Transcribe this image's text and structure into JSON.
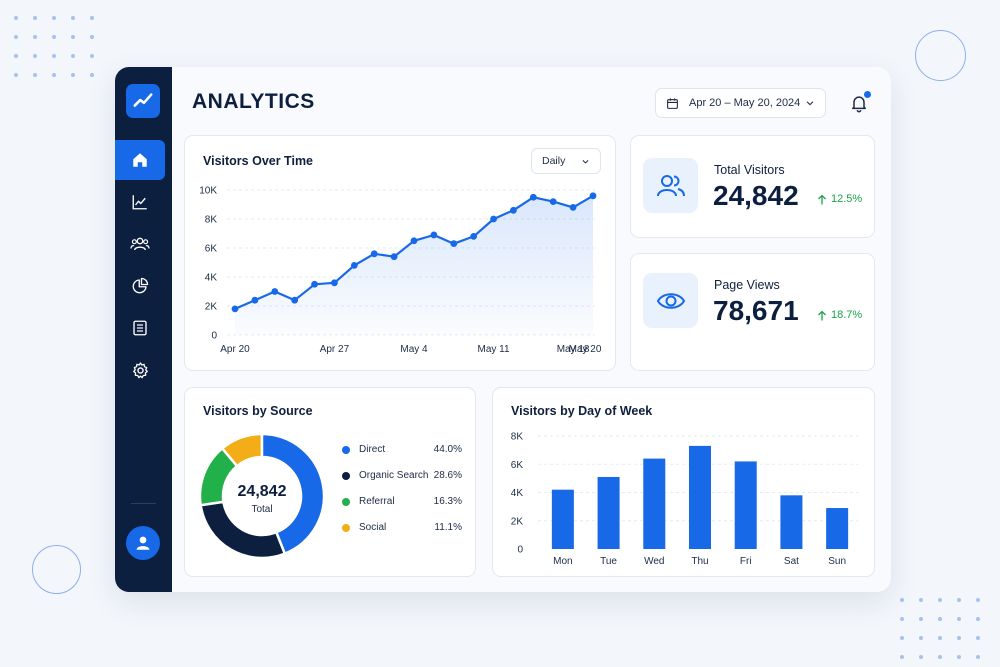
{
  "app": {
    "title": "ANALYTICS"
  },
  "header": {
    "date_range": "Apr 20 – May 20, 2024"
  },
  "sidebar": {
    "items": [
      {
        "name": "home",
        "icon": "home-icon",
        "active": true
      },
      {
        "name": "trends",
        "icon": "chart-line-icon",
        "active": false
      },
      {
        "name": "audience",
        "icon": "users-icon",
        "active": false
      },
      {
        "name": "reports",
        "icon": "pie-chart-icon",
        "active": false
      },
      {
        "name": "lists",
        "icon": "list-icon",
        "active": false
      },
      {
        "name": "settings",
        "icon": "gear-icon",
        "active": false
      }
    ]
  },
  "visitors_over_time": {
    "title": "Visitors Over Time",
    "granularity": "Daily"
  },
  "stats": {
    "total_visitors": {
      "label": "Total Visitors",
      "value": "24,842",
      "change": "12.5%"
    },
    "page_views": {
      "label": "Page Views",
      "value": "78,671",
      "change": "18.7%"
    }
  },
  "visitors_by_source": {
    "title": "Visitors by Source",
    "center_value": "24,842",
    "center_label": "Total"
  },
  "visitors_by_day": {
    "title": "Visitors by Day of Week"
  },
  "colors": {
    "accent": "#1769e8",
    "navy": "#0d1f3f",
    "green": "#22b04b",
    "amber": "#f2ad17",
    "positive": "#19a34a"
  },
  "chart_data": [
    {
      "type": "line",
      "title": "Visitors Over Time",
      "x": [
        "Apr 20",
        "Apr 22",
        "Apr 24",
        "Apr 26",
        "Apr 28",
        "Apr 30",
        "May 2",
        "May 3",
        "May 5",
        "May 6",
        "May 7",
        "May 9",
        "May 10",
        "May 12",
        "May 13",
        "May 15",
        "May 17",
        "May 18",
        "May 20"
      ],
      "x_tick_labels": [
        "Apr 20",
        "Apr 27",
        "May 4",
        "May 11",
        "May 18",
        "May 20"
      ],
      "y": [
        1800,
        2400,
        3000,
        2400,
        3500,
        3600,
        4800,
        5600,
        5400,
        6500,
        6900,
        6300,
        6800,
        8000,
        8600,
        9500,
        9200,
        8800,
        9600
      ],
      "y_tick_labels": [
        "0",
        "2K",
        "4K",
        "6K",
        "8K",
        "10K"
      ],
      "ylim": [
        0,
        10000
      ],
      "grid": true
    },
    {
      "type": "pie",
      "title": "Visitors by Source",
      "categories": [
        "Direct",
        "Organic Search",
        "Referral",
        "Social"
      ],
      "values": [
        44.0,
        28.6,
        16.3,
        11.1
      ],
      "value_labels": [
        "44.0%",
        "28.6%",
        "16.3%",
        "11.1%"
      ],
      "colors": [
        "#1769e8",
        "#0d1f3f",
        "#22b04b",
        "#f2ad17"
      ]
    },
    {
      "type": "bar",
      "title": "Visitors by Day of Week",
      "categories": [
        "Mon",
        "Tue",
        "Wed",
        "Thu",
        "Fri",
        "Sat",
        "Sun"
      ],
      "values": [
        4200,
        5100,
        6400,
        7300,
        6200,
        3800,
        2900
      ],
      "y_tick_labels": [
        "0",
        "2K",
        "4K",
        "6K",
        "8K"
      ],
      "ylim": [
        0,
        8000
      ],
      "grid": true
    }
  ]
}
